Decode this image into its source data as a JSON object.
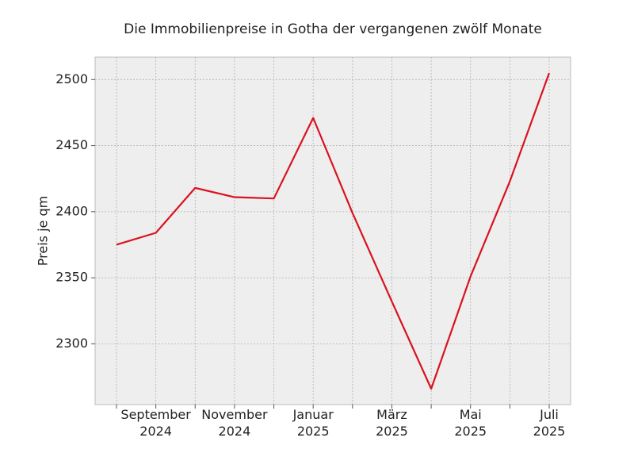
{
  "chart_data": {
    "type": "line",
    "title": "Die Immobilienpreise in Gotha der vergangenen zwölf Monate",
    "y_label": "Preis je qm",
    "categories": [
      null,
      "September\n2024",
      null,
      "November\n2024",
      null,
      "Januar\n2025",
      null,
      "März\n2025",
      null,
      "Mai\n2025",
      null,
      "Juli\n2025"
    ],
    "series": [
      {
        "name": "Preis je qm",
        "color": "#d9121f",
        "values": [
          2375,
          2384,
          2418,
          2411,
          2410,
          2471,
          2399,
          2332,
          2266,
          2351,
          2423,
          2505
        ]
      }
    ],
    "ylim": [
      2254,
      2517
    ],
    "yticks": [
      2300,
      2350,
      2400,
      2450,
      2500
    ],
    "grid": true
  }
}
